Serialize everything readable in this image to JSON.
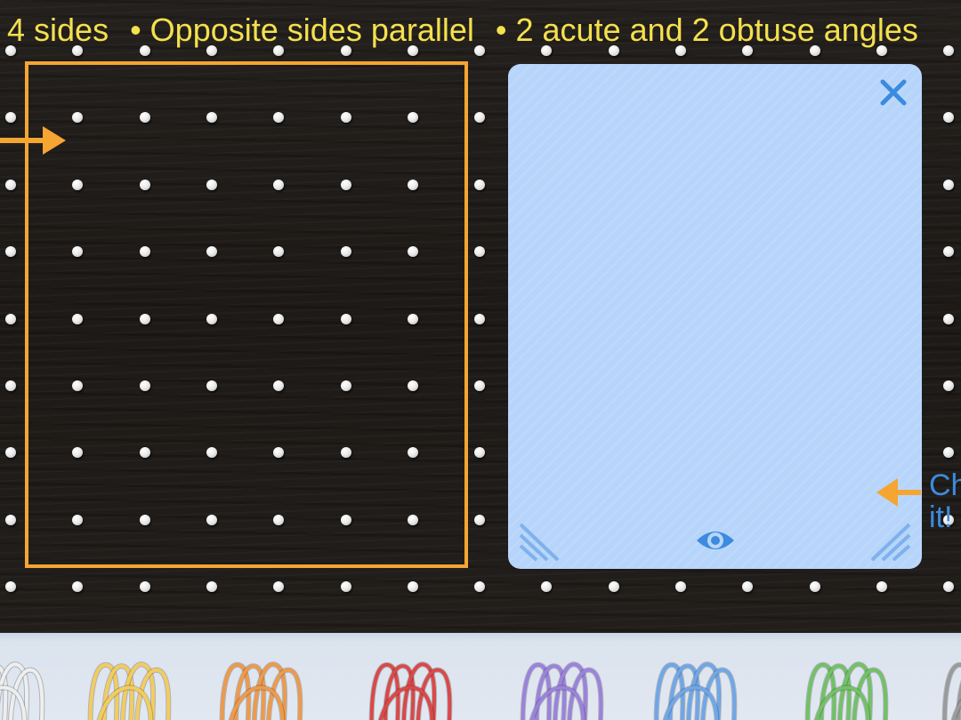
{
  "instructions": {
    "items": [
      "4 sides",
      "• Opposite sides parallel",
      "• 2 acute and 2 obtuse angles"
    ]
  },
  "answer_panel": {
    "close_icon": "close-icon",
    "eye_icon": "eye-icon",
    "resize_icon": "resize-handle-icon"
  },
  "check": {
    "label": "Check it!"
  },
  "colors": {
    "accent_orange": "#f5a532",
    "instruction_yellow": "#f4e04d",
    "panel_blue": "#b7d5fa",
    "icon_blue": "#3b8be0"
  },
  "band_tray": {
    "bands": [
      {
        "name": "white-band",
        "color": "#eeeeee"
      },
      {
        "name": "yellow-band",
        "color": "#f2cc5e"
      },
      {
        "name": "orange-band",
        "color": "#ee9a4a"
      },
      {
        "name": "red-band",
        "color": "#db4848"
      },
      {
        "name": "purple-band",
        "color": "#9b82dc"
      },
      {
        "name": "blue-band",
        "color": "#6fa7e8"
      },
      {
        "name": "green-band",
        "color": "#71c265"
      },
      {
        "name": "gray-band",
        "color": "#9a9a9a"
      }
    ]
  }
}
